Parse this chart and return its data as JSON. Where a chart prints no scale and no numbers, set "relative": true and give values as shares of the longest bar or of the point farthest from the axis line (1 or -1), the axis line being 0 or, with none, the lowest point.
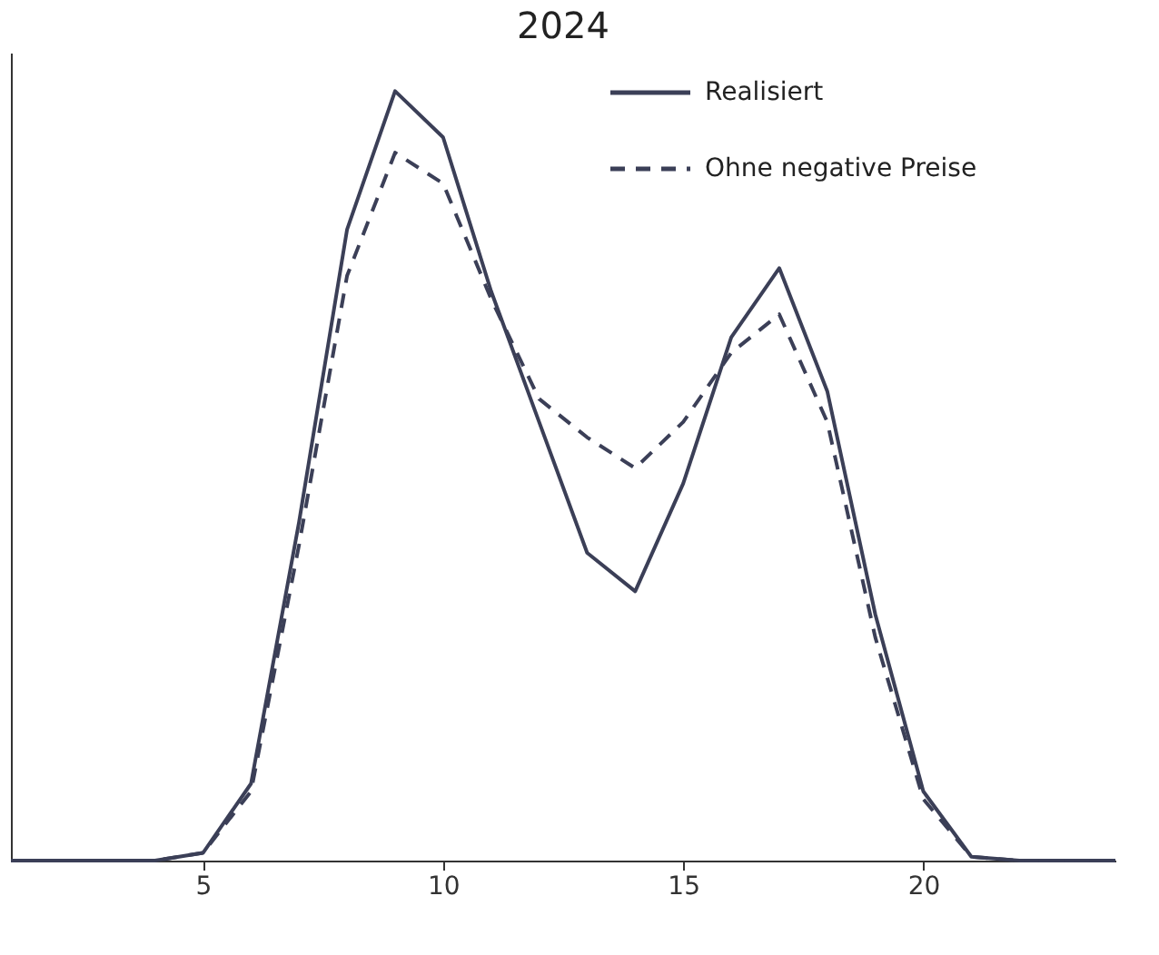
{
  "chart_data": {
    "type": "line",
    "title": "2024",
    "relative": true,
    "tick_labels": "x",
    "legend": "top right",
    "grid": false,
    "x": [
      1,
      2,
      3,
      4,
      5,
      6,
      7,
      8,
      9,
      10,
      11,
      12,
      13,
      14,
      15,
      16,
      17,
      18,
      19,
      20,
      21,
      22,
      23,
      24
    ],
    "xlim": [
      1,
      24
    ],
    "xticks": [
      5,
      10,
      15,
      20
    ],
    "series": [
      {
        "name": "Realisiert",
        "color": "#3b3f57",
        "line_style": "solid",
        "values": [
          0,
          0,
          0,
          0,
          0.01,
          0.1,
          0.44,
          0.82,
          1.0,
          0.94,
          0.74,
          0.57,
          0.4,
          0.35,
          0.49,
          0.68,
          0.77,
          0.61,
          0.32,
          0.09,
          0.005,
          0,
          0,
          0
        ]
      },
      {
        "name": "Ohne negative Preise",
        "color": "#3b3f57",
        "line_style": "dashed",
        "values": [
          0,
          0,
          0,
          0,
          0.01,
          0.09,
          0.41,
          0.76,
          0.92,
          0.88,
          0.73,
          0.6,
          0.55,
          0.51,
          0.57,
          0.66,
          0.71,
          0.57,
          0.29,
          0.08,
          0.005,
          0,
          0,
          0
        ]
      }
    ]
  }
}
